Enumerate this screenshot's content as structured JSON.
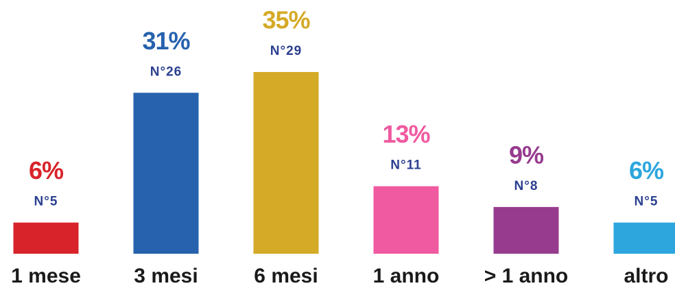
{
  "chart_data": {
    "type": "bar",
    "categories": [
      "1 mese",
      "3 mesi",
      "6 mesi",
      "1 anno",
      "> 1 anno",
      "altro"
    ],
    "values": [
      6,
      31,
      35,
      13,
      9,
      6
    ],
    "value_labels": [
      "6%",
      "31%",
      "35%",
      "13%",
      "9%",
      "6%"
    ],
    "count_labels": [
      "N°5",
      "N°26",
      "N°29",
      "N°11",
      "N°8",
      "N°5"
    ],
    "colors": [
      "#d8232a",
      "#2662ad",
      "#d4aa27",
      "#ef5aa0",
      "#973b8f",
      "#2ca6dd"
    ]
  }
}
